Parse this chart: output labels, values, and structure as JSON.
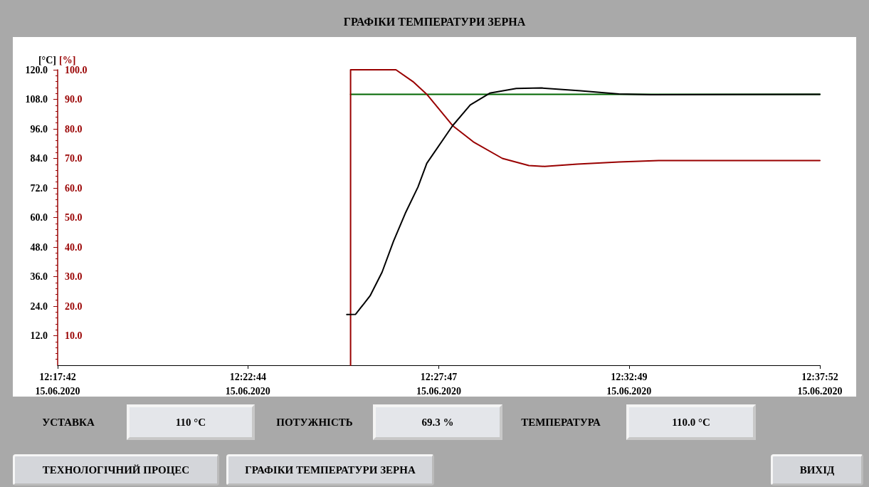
{
  "chart_data": {
    "type": "line",
    "title": "ГРАФІКИ ТЕМПЕРАТУРИ ЗЕРНА",
    "ylabel": "[°C]",
    "y2label": "[%]",
    "xlim": [
      "2020-06-15T12:17:42",
      "2020-06-15T12:37:52"
    ],
    "xticks": [
      {
        "value": "2020-06-15T12:17:42",
        "label": "12:17:42\n15.06.2020"
      },
      {
        "value": "2020-06-15T12:22:44",
        "label": "12:22:44\n15.06.2020"
      },
      {
        "value": "2020-06-15T12:27:47",
        "label": "12:27:47\n15.06.2020"
      },
      {
        "value": "2020-06-15T12:32:49",
        "label": "12:32:49\n15.06.2020"
      },
      {
        "value": "2020-06-15T12:37:52",
        "label": "12:37:52\n15.06.2020"
      }
    ],
    "ylim": [
      0,
      120
    ],
    "yticks": [
      {
        "value": 12,
        "label": "12.0"
      },
      {
        "value": 24,
        "label": "24.0"
      },
      {
        "value": 36,
        "label": "36.0"
      },
      {
        "value": 48,
        "label": "48.0"
      },
      {
        "value": 60,
        "label": "60.0"
      },
      {
        "value": 72,
        "label": "72.0"
      },
      {
        "value": 84,
        "label": "84.0"
      },
      {
        "value": 96,
        "label": "96.0"
      },
      {
        "value": 108,
        "label": "108.0"
      },
      {
        "value": 120,
        "label": "120.0"
      }
    ],
    "y2lim": [
      0,
      100
    ],
    "y2ticks": [
      {
        "value": 10,
        "label": "10.0"
      },
      {
        "value": 20,
        "label": "20.0"
      },
      {
        "value": 30,
        "label": "30.0"
      },
      {
        "value": 40,
        "label": "40.0"
      },
      {
        "value": 50,
        "label": "50.0"
      },
      {
        "value": 60,
        "label": "60.0"
      },
      {
        "value": 70,
        "label": "70.0"
      },
      {
        "value": 80,
        "label": "80.0"
      },
      {
        "value": 90,
        "label": "90.0"
      },
      {
        "value": 100,
        "label": "100.0"
      }
    ],
    "series": [
      {
        "color": "#006600",
        "x": [
          "2020-06-15T12:25:27",
          "2020-06-15T12:37:52"
        ],
        "values": [
          110,
          110
        ]
      },
      {
        "color": "#990000",
        "axis": "y2",
        "x": [
          "2020-06-15T12:25:27",
          "2020-06-15T12:25:27",
          "2020-06-15T12:26:39",
          "2020-06-15T12:27:06",
          "2020-06-15T12:27:28",
          "2020-06-15T12:28:09",
          "2020-06-15T12:28:42",
          "2020-06-15T12:29:28",
          "2020-06-15T12:30:10",
          "2020-06-15T12:30:35",
          "2020-06-15T12:31:27",
          "2020-06-15T12:32:33",
          "2020-06-15T12:33:36",
          "2020-06-15T12:35:17",
          "2020-06-15T12:37:52"
        ],
        "values": [
          0,
          100,
          100,
          96,
          91.7,
          81.1,
          75.6,
          70.0,
          67.6,
          67.3,
          68.1,
          68.8,
          69.3,
          69.3,
          69.3
        ]
      },
      {
        "color": "#000000",
        "x": [
          "2020-06-15T12:25:21",
          "2020-06-15T12:25:35",
          "2020-06-15T12:25:58",
          "2020-06-15T12:26:17",
          "2020-06-15T12:26:35",
          "2020-06-15T12:26:54",
          "2020-06-15T12:27:14",
          "2020-06-15T12:27:28",
          "2020-06-15T12:28:09",
          "2020-06-15T12:28:37",
          "2020-06-15T12:29:08",
          "2020-06-15T12:29:50",
          "2020-06-15T12:30:30",
          "2020-06-15T12:31:32",
          "2020-06-15T12:32:33",
          "2020-06-15T12:33:24",
          "2020-06-15T12:37:52"
        ],
        "values": [
          20.6,
          20.7,
          28.2,
          37.8,
          50.3,
          61.8,
          72.4,
          82.0,
          97.3,
          105.7,
          110.5,
          112.4,
          112.6,
          111.5,
          110.2,
          109.9,
          110
        ]
      }
    ],
    "annotations": [
      "УСТАВКА",
      "110 °C",
      "ПОТУЖНІСТЬ",
      "69.3 %",
      "ТЕМПЕРАТУРА",
      "110.0 °C",
      "ТЕХНОЛОГІЧНИЙ ПРОЦЕС",
      "ГРАФІКИ ТЕМПЕРАТУРИ ЗЕРНА",
      "ВИХІД"
    ],
    "grid": false,
    "marker": "none",
    "line_style": "solid"
  }
}
